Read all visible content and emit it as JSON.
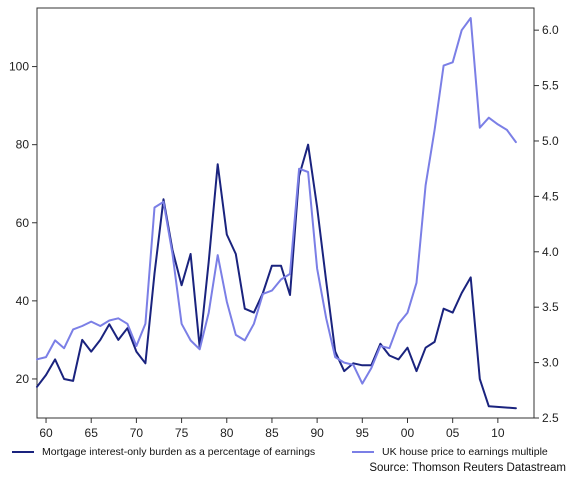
{
  "chart_data": {
    "type": "line",
    "title": "",
    "xlabel": "",
    "x_range": [
      1959,
      2014
    ],
    "x_ticks": [
      1960,
      1965,
      1970,
      1975,
      1980,
      1985,
      1990,
      1995,
      2000,
      2005,
      2010
    ],
    "x_tick_labels": [
      "60",
      "65",
      "70",
      "75",
      "80",
      "85",
      "90",
      "95",
      "00",
      "05",
      "10"
    ],
    "y_left": {
      "range": [
        10,
        115
      ],
      "ticks": [
        20,
        40,
        60,
        80,
        100
      ],
      "tick_labels": [
        "20",
        "40",
        "60",
        "80",
        "100"
      ]
    },
    "y_right": {
      "range": [
        2.5,
        6.2
      ],
      "ticks": [
        2.5,
        3.0,
        3.5,
        4.0,
        4.5,
        5.0,
        5.5,
        6.0
      ],
      "tick_labels": [
        "2.5",
        "3.0",
        "3.5",
        "4.0",
        "4.5",
        "5.0",
        "5.5",
        "6.0"
      ]
    },
    "grid": false,
    "legend_position": "bottom",
    "series": [
      {
        "name": "Mortgage interest-only burden as a percentage of earnings",
        "axis": "left",
        "color": "#1a237e",
        "points": [
          [
            1959,
            18
          ],
          [
            1960,
            21
          ],
          [
            1961,
            25
          ],
          [
            1962,
            20
          ],
          [
            1963,
            19.5
          ],
          [
            1964,
            30
          ],
          [
            1965,
            27
          ],
          [
            1966,
            30
          ],
          [
            1967,
            34
          ],
          [
            1968,
            30
          ],
          [
            1969,
            33
          ],
          [
            1970,
            27
          ],
          [
            1971,
            24
          ],
          [
            1972,
            47
          ],
          [
            1973,
            66
          ],
          [
            1974,
            53
          ],
          [
            1975,
            44
          ],
          [
            1976,
            52
          ],
          [
            1977,
            28
          ],
          [
            1978,
            50
          ],
          [
            1979,
            75
          ],
          [
            1980,
            57
          ],
          [
            1981,
            52
          ],
          [
            1982,
            38
          ],
          [
            1983,
            37
          ],
          [
            1984,
            42
          ],
          [
            1985,
            49
          ],
          [
            1986,
            49
          ],
          [
            1987,
            41.5
          ],
          [
            1988,
            72
          ],
          [
            1989,
            80
          ],
          [
            1990,
            64
          ],
          [
            1991,
            45
          ],
          [
            1992,
            27
          ],
          [
            1993,
            22
          ],
          [
            1994,
            24
          ],
          [
            1995,
            23.5
          ],
          [
            1996,
            23.5
          ],
          [
            1997,
            29
          ],
          [
            1998,
            26
          ],
          [
            1999,
            25
          ],
          [
            2000,
            28
          ],
          [
            2001,
            22
          ],
          [
            2002,
            28
          ],
          [
            2003,
            29.5
          ],
          [
            2004,
            38
          ],
          [
            2005,
            37
          ],
          [
            2006,
            42
          ],
          [
            2007,
            46
          ],
          [
            2008,
            20
          ],
          [
            2009,
            13
          ],
          [
            2012,
            12.5
          ]
        ]
      },
      {
        "name": "UK house price to earnings multiple",
        "axis": "right",
        "color": "#7b7fe6",
        "points": [
          [
            1959,
            3.03
          ],
          [
            1960,
            3.05
          ],
          [
            1961,
            3.2
          ],
          [
            1962,
            3.13
          ],
          [
            1963,
            3.3
          ],
          [
            1964,
            3.33
          ],
          [
            1965,
            3.37
          ],
          [
            1966,
            3.33
          ],
          [
            1967,
            3.38
          ],
          [
            1968,
            3.4
          ],
          [
            1969,
            3.35
          ],
          [
            1970,
            3.15
          ],
          [
            1971,
            3.35
          ],
          [
            1972,
            4.4
          ],
          [
            1973,
            4.45
          ],
          [
            1974,
            3.98
          ],
          [
            1975,
            3.35
          ],
          [
            1976,
            3.2
          ],
          [
            1977,
            3.12
          ],
          [
            1978,
            3.45
          ],
          [
            1979,
            3.97
          ],
          [
            1980,
            3.55
          ],
          [
            1981,
            3.25
          ],
          [
            1982,
            3.2
          ],
          [
            1983,
            3.35
          ],
          [
            1984,
            3.62
          ],
          [
            1985,
            3.65
          ],
          [
            1986,
            3.75
          ],
          [
            1987,
            3.8
          ],
          [
            1988,
            4.75
          ],
          [
            1989,
            4.72
          ],
          [
            1990,
            3.85
          ],
          [
            1991,
            3.4
          ],
          [
            1992,
            3.05
          ],
          [
            1993,
            3.0
          ],
          [
            1994,
            2.98
          ],
          [
            1995,
            2.81
          ],
          [
            1996,
            2.95
          ],
          [
            1997,
            3.15
          ],
          [
            1998,
            3.13
          ],
          [
            1999,
            3.35
          ],
          [
            2000,
            3.45
          ],
          [
            2001,
            3.72
          ],
          [
            2002,
            4.6
          ],
          [
            2003,
            5.1
          ],
          [
            2004,
            5.68
          ],
          [
            2005,
            5.71
          ],
          [
            2006,
            6.0
          ],
          [
            2007,
            6.11
          ],
          [
            2008,
            5.12
          ],
          [
            2009,
            5.21
          ],
          [
            2010,
            5.15
          ],
          [
            2011,
            5.1
          ],
          [
            2012,
            4.99
          ]
        ]
      }
    ],
    "annotations": [
      "Source: Thomson Reuters Datastream"
    ]
  },
  "legend": {
    "series1_label": "Mortgage interest-only burden as a percentage of earnings",
    "series2_label": "UK house price to earnings multiple"
  },
  "source": "Source: Thomson Reuters Datastream",
  "colors": {
    "series1": "#1a237e",
    "series2": "#7b7fe6",
    "axis": "#333333"
  }
}
